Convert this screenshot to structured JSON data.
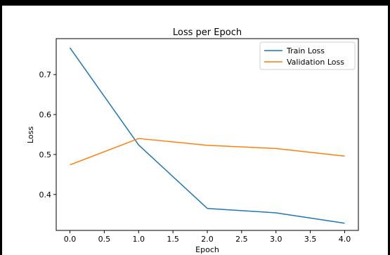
{
  "chart_data": {
    "type": "line",
    "title": "Loss per Epoch",
    "xlabel": "Epoch",
    "ylabel": "Loss",
    "x": [
      0.0,
      1.0,
      2.0,
      3.0,
      4.0
    ],
    "xlim": [
      -0.2,
      4.2
    ],
    "ylim": [
      0.31,
      0.79
    ],
    "xticks": [
      0.0,
      0.5,
      1.0,
      1.5,
      2.0,
      2.5,
      3.0,
      3.5,
      4.0
    ],
    "xtick_labels": [
      "0.0",
      "0.5",
      "1.0",
      "1.5",
      "2.0",
      "2.5",
      "3.0",
      "3.5",
      "4.0"
    ],
    "yticks": [
      0.4,
      0.5,
      0.6,
      0.7
    ],
    "ytick_labels": [
      "0.4",
      "0.5",
      "0.6",
      "0.7"
    ],
    "grid": false,
    "legend_position": "top-right",
    "series": [
      {
        "name": "Train Loss",
        "color": "#1f77b4",
        "values": [
          0.767,
          0.524,
          0.365,
          0.354,
          0.328
        ]
      },
      {
        "name": "Validation Loss",
        "color": "#ff7f0e",
        "values": [
          0.474,
          0.54,
          0.523,
          0.515,
          0.496
        ]
      }
    ]
  }
}
